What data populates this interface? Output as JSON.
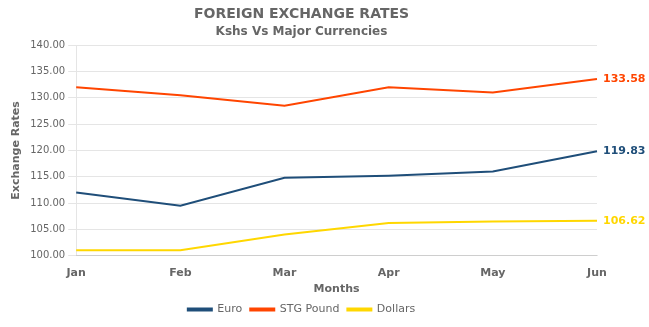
{
  "chart_data": {
    "type": "line",
    "title": "FOREIGN EXCHANGE RATES",
    "subtitle": "Kshs Vs Major Currencies",
    "x_label": "Months",
    "y_label": "Exchange Rates",
    "categories": [
      "Jan",
      "Feb",
      "Mar",
      "Apr",
      "May",
      "Jun"
    ],
    "series": [
      {
        "name": "Euro",
        "color": "#1F4E79",
        "values": [
          112.0,
          109.5,
          114.8,
          115.2,
          116.0,
          119.83
        ]
      },
      {
        "name": "STG Pound",
        "color": "#FF4500",
        "values": [
          132.0,
          130.5,
          128.5,
          132.0,
          131.0,
          133.58
        ]
      },
      {
        "name": "Dollars",
        "color": "#FFD700",
        "values": [
          101.0,
          101.0,
          104.0,
          106.2,
          106.5,
          106.62
        ]
      }
    ],
    "annotations": [
      {
        "text": "133.58",
        "x": "Jun",
        "y": 133.58,
        "color": "#FF4500"
      },
      {
        "text": "119.83",
        "x": "Jun",
        "y": 119.83,
        "color": "#1F4E79"
      },
      {
        "text": "106.62",
        "x": "Jun",
        "y": 106.62,
        "color": "#FFD700"
      }
    ],
    "ylim": [
      100.0,
      140.0
    ],
    "yticks": [
      {
        "value": 100.0,
        "label": "100.00"
      },
      {
        "value": 105.0,
        "label": "105.00"
      },
      {
        "value": 110.0,
        "label": "110.00"
      },
      {
        "value": 115.0,
        "label": "115.00"
      },
      {
        "value": 120.0,
        "label": "120.00"
      },
      {
        "value": 125.0,
        "label": "125.00"
      },
      {
        "value": 130.0,
        "label": "130.00"
      },
      {
        "value": 135.0,
        "label": "135.00"
      },
      {
        "value": 140.0,
        "label": "140.00"
      }
    ],
    "grid": true,
    "legend": "bottom"
  }
}
